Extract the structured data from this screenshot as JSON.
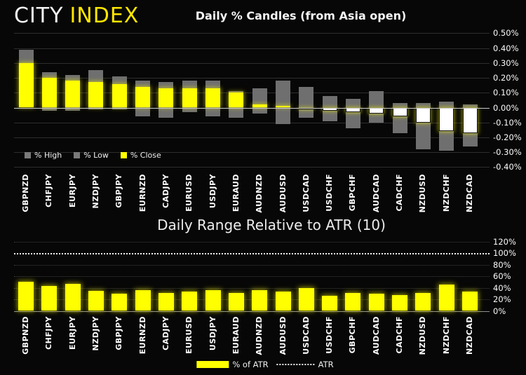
{
  "brand": {
    "city": "CITY",
    "index": "INDEX"
  },
  "colors": {
    "background": "#070707",
    "bar_yellow": "#ffff00",
    "range_gray": "#6f6f6f",
    "negative_close_white": "#ffffff",
    "logo_yellow": "#ffe600",
    "grid": "#2d2d2d",
    "zero_line": "#c9c9c9",
    "text": "#f5f5f5"
  },
  "chart_data": [
    {
      "id": "daily_pct_candles",
      "type": "bar",
      "subtype": "high-low-close-candles",
      "title": "Daily % Candles (from Asia open)",
      "xlabel": "",
      "ylabel": "",
      "ylim": [
        -0.4,
        0.5
      ],
      "grid": true,
      "legend_position": "bottom-left",
      "ytick_labels": [
        "0.50%",
        "0.40%",
        "0.30%",
        "0.20%",
        "0.10%",
        "0.00%",
        "-0.10%",
        "-0.20%",
        "-0.30%",
        "-0.40%"
      ],
      "categories": [
        "GBPNZD",
        "CHFJPY",
        "EURJPY",
        "NZDJPY",
        "GBPJPY",
        "EURNZD",
        "CADJPY",
        "EURUSD",
        "USDJPY",
        "EURAUD",
        "AUDNZD",
        "AUDUSD",
        "USDCAD",
        "USDCHF",
        "GBPCHF",
        "AUDCAD",
        "CADCHF",
        "NZDUSD",
        "NZDCHF",
        "NZDCAD"
      ],
      "series": [
        {
          "name": "% High",
          "values": [
            0.39,
            0.24,
            0.22,
            0.25,
            0.21,
            0.18,
            0.17,
            0.18,
            0.18,
            0.11,
            0.13,
            0.18,
            0.14,
            0.08,
            0.06,
            0.11,
            0.03,
            0.03,
            0.04,
            0.02
          ]
        },
        {
          "name": "% Low",
          "values": [
            0.0,
            -0.02,
            -0.02,
            -0.01,
            -0.01,
            -0.06,
            -0.07,
            -0.03,
            -0.06,
            -0.07,
            -0.04,
            -0.11,
            -0.07,
            -0.09,
            -0.14,
            -0.1,
            -0.17,
            -0.28,
            -0.29,
            -0.26
          ]
        },
        {
          "name": "% Close",
          "values": [
            0.3,
            0.2,
            0.18,
            0.17,
            0.16,
            0.14,
            0.13,
            0.13,
            0.13,
            0.1,
            0.02,
            0.01,
            -0.01,
            -0.02,
            -0.03,
            -0.04,
            -0.06,
            -0.1,
            -0.16,
            -0.17
          ]
        }
      ],
      "legend": [
        "% High",
        "% Low",
        "% Close"
      ]
    },
    {
      "id": "daily_range_vs_atr",
      "type": "bar",
      "title": "Daily Range Relative to ATR (10)",
      "xlabel": "",
      "ylabel": "",
      "ylim": [
        0,
        120
      ],
      "grid": true,
      "legend_position": "bottom-center",
      "ytick_labels": [
        "120%",
        "100%",
        "80%",
        "60%",
        "40%",
        "20%",
        "0%"
      ],
      "atr_reference_level": 100,
      "categories": [
        "GBPNZD",
        "CHFJPY",
        "EURJPY",
        "NZDJPY",
        "GBPJPY",
        "EURNZD",
        "CADJPY",
        "EURUSD",
        "USDJPY",
        "EURAUD",
        "AUDNZD",
        "AUDUSD",
        "USDCAD",
        "USDCHF",
        "GBPCHF",
        "AUDCAD",
        "CADCHF",
        "NZDUSD",
        "NZDCHF",
        "NZDCAD"
      ],
      "series": [
        {
          "name": "% of ATR",
          "values": [
            50,
            43,
            47,
            35,
            30,
            36,
            31,
            34,
            36,
            31,
            36,
            34,
            39,
            26,
            31,
            30,
            27,
            31,
            45,
            34
          ]
        },
        {
          "name": "ATR",
          "values": [
            100,
            100,
            100,
            100,
            100,
            100,
            100,
            100,
            100,
            100,
            100,
            100,
            100,
            100,
            100,
            100,
            100,
            100,
            100,
            100
          ]
        }
      ],
      "legend": [
        "% of ATR",
        "ATR"
      ]
    }
  ]
}
